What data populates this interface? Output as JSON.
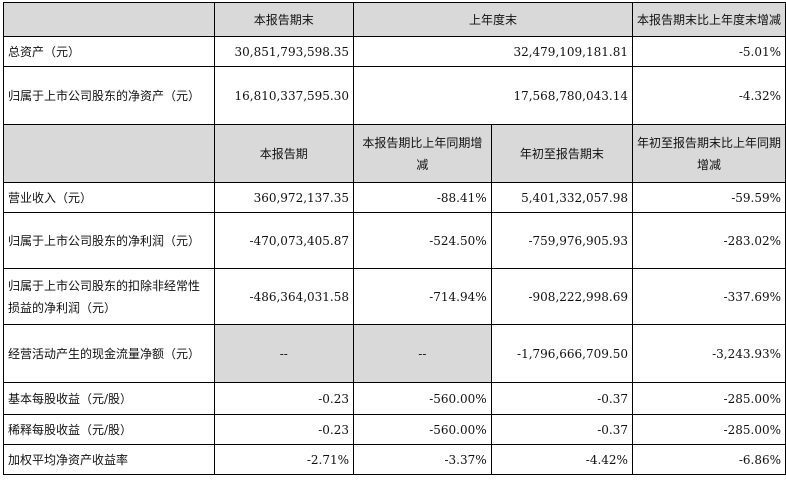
{
  "header1": {
    "col1": "本报告期末",
    "col2": "上年度末",
    "col3": "本报告期末比上年度末增减"
  },
  "balance_rows": [
    {
      "label": "总资产（元）",
      "current": "30,851,793,598.35",
      "prior": "32,479,109,181.81",
      "change": "-5.01%"
    },
    {
      "label": "归属于上市公司股东的净资产（元）",
      "current": "16,810,337,595.30",
      "prior": "17,568,780,043.14",
      "change": "-4.32%"
    }
  ],
  "header2": {
    "col1": "本报告期",
    "col2": "本报告期比上年同期增减",
    "col3": "年初至报告期末",
    "col4": "年初至报告期末比上年同期增减"
  },
  "income_rows": [
    {
      "label": "营业收入（元）",
      "period": "360,972,137.35",
      "period_change": "-88.41%",
      "ytd": "5,401,332,057.98",
      "ytd_change": "-59.59%"
    },
    {
      "label": "归属于上市公司股东的净利润（元）",
      "period": "-470,073,405.87",
      "period_change": "-524.50%",
      "ytd": "-759,976,905.93",
      "ytd_change": "-283.02%"
    },
    {
      "label": "归属于上市公司股东的扣除非经常性损益的净利润（元）",
      "period": "-486,364,031.58",
      "period_change": "-714.94%",
      "ytd": "-908,222,998.69",
      "ytd_change": "-337.69%"
    },
    {
      "label": "经营活动产生的现金流量净额（元）",
      "period": "--",
      "period_change": "--",
      "ytd": "-1,796,666,709.50",
      "ytd_change": "-3,243.93%"
    },
    {
      "label": "基本每股收益（元/股）",
      "period": "-0.23",
      "period_change": "-560.00%",
      "ytd": "-0.37",
      "ytd_change": "-285.00%"
    },
    {
      "label": "稀释每股收益（元/股）",
      "period": "-0.23",
      "period_change": "-560.00%",
      "ytd": "-0.37",
      "ytd_change": "-285.00%"
    },
    {
      "label": "加权平均净资产收益率",
      "period": "-2.71%",
      "period_change": "-3.37%",
      "ytd": "-4.42%",
      "ytd_change": "-6.86%"
    }
  ]
}
